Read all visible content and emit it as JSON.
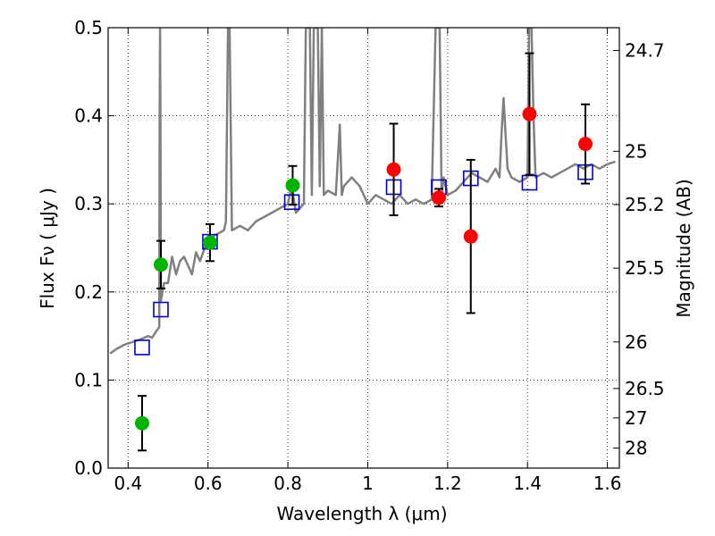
{
  "chart_data": {
    "type": "scatter",
    "title": "",
    "xlabel": "Wavelength  λ (μm)",
    "ylabel": "Flux  Fν  ( μJy )",
    "y2label": "Magnitude (AB)",
    "xlim": [
      0.35,
      1.63
    ],
    "ylim": [
      0.0,
      0.5
    ],
    "grid": true,
    "x_ticks": [
      0.4,
      0.6,
      0.8,
      1.0,
      1.2,
      1.4,
      1.6
    ],
    "x_tick_labels": [
      "0.4",
      "0.6",
      "0.8",
      "1",
      "1.2",
      "1.4",
      "1.6"
    ],
    "y_ticks": [
      0.0,
      0.1,
      0.2,
      0.3,
      0.4,
      0.5
    ],
    "y_tick_labels": [
      "0.0",
      "0.1",
      "0.2",
      "0.3",
      "0.4",
      "0.5"
    ],
    "y2_ticks": [
      {
        "label": "24.7",
        "flux": 0.4742
      },
      {
        "label": "25",
        "flux": 0.3597
      },
      {
        "label": "25.2",
        "flux": 0.2992
      },
      {
        "label": "25.5",
        "flux": 0.227
      },
      {
        "label": "26",
        "flux": 0.1432
      },
      {
        "label": "26.5",
        "flux": 0.0904
      },
      {
        "label": "27",
        "flux": 0.057
      },
      {
        "label": "28",
        "flux": 0.0227
      }
    ],
    "series": [
      {
        "name": "model_spectrum",
        "kind": "line",
        "color": "#808080",
        "x": [
          0.355,
          0.37,
          0.39,
          0.41,
          0.43,
          0.45,
          0.46,
          0.47,
          0.478,
          0.479,
          0.48,
          0.481,
          0.482,
          0.49,
          0.5,
          0.51,
          0.52,
          0.53,
          0.54,
          0.55,
          0.56,
          0.57,
          0.58,
          0.6,
          0.62,
          0.64,
          0.645,
          0.65,
          0.652,
          0.654,
          0.66,
          0.68,
          0.7,
          0.72,
          0.74,
          0.76,
          0.78,
          0.8,
          0.81,
          0.82,
          0.84,
          0.845,
          0.85,
          0.855,
          0.86,
          0.865,
          0.87,
          0.875,
          0.88,
          0.885,
          0.89,
          0.9,
          0.92,
          0.93,
          0.935,
          0.94,
          0.96,
          0.98,
          1.0,
          1.02,
          1.04,
          1.06,
          1.08,
          1.1,
          1.12,
          1.14,
          1.16,
          1.17,
          1.175,
          1.18,
          1.185,
          1.19,
          1.2,
          1.22,
          1.24,
          1.26,
          1.28,
          1.3,
          1.32,
          1.33,
          1.335,
          1.34,
          1.345,
          1.35,
          1.36,
          1.38,
          1.4,
          1.404,
          1.41,
          1.415,
          1.42,
          1.44,
          1.46,
          1.48,
          1.5,
          1.52,
          1.54,
          1.56,
          1.58,
          1.6,
          1.62
        ],
        "y": [
          0.13,
          0.135,
          0.14,
          0.143,
          0.146,
          0.15,
          0.148,
          0.155,
          0.16,
          0.4,
          0.5,
          0.4,
          0.19,
          0.21,
          0.21,
          0.24,
          0.22,
          0.235,
          0.24,
          0.23,
          0.22,
          0.245,
          0.235,
          0.26,
          0.265,
          0.27,
          0.28,
          0.5,
          0.5,
          0.5,
          0.27,
          0.275,
          0.27,
          0.28,
          0.285,
          0.29,
          0.295,
          0.3,
          0.32,
          0.29,
          0.3,
          0.5,
          0.5,
          0.5,
          0.31,
          0.5,
          0.5,
          0.5,
          0.32,
          0.5,
          0.31,
          0.315,
          0.31,
          0.39,
          0.31,
          0.32,
          0.33,
          0.32,
          0.3,
          0.31,
          0.305,
          0.3,
          0.31,
          0.3,
          0.305,
          0.3,
          0.305,
          0.5,
          0.5,
          0.5,
          0.31,
          0.33,
          0.31,
          0.315,
          0.325,
          0.335,
          0.33,
          0.325,
          0.34,
          0.33,
          0.38,
          0.42,
          0.38,
          0.34,
          0.33,
          0.325,
          0.33,
          0.5,
          0.5,
          0.4,
          0.33,
          0.335,
          0.33,
          0.335,
          0.34,
          0.345,
          0.34,
          0.345,
          0.34,
          0.345,
          0.348
        ]
      },
      {
        "name": "model_bandpass_flux",
        "kind": "markers",
        "marker": "square",
        "color": "#0000cc",
        "x": [
          0.435,
          0.482,
          0.605,
          0.81,
          1.065,
          1.178,
          1.258,
          1.405,
          1.545
        ],
        "y": [
          0.137,
          0.18,
          0.257,
          0.302,
          0.319,
          0.319,
          0.329,
          0.324,
          0.336
        ]
      },
      {
        "name": "observed_optical",
        "kind": "errorbar_markers",
        "marker": "circle",
        "color": "#00b400",
        "x": [
          0.435,
          0.482,
          0.605,
          0.812
        ],
        "y": [
          0.051,
          0.231,
          0.256,
          0.321
        ],
        "yerr": [
          0.031,
          0.027,
          0.021,
          0.022
        ]
      },
      {
        "name": "observed_nir",
        "kind": "errorbar_markers",
        "marker": "circle",
        "color": "#ff0000",
        "x": [
          1.065,
          1.178,
          1.258,
          1.405,
          1.545
        ],
        "y": [
          0.339,
          0.307,
          0.263,
          0.402,
          0.368
        ],
        "yerr": [
          0.052,
          0.01,
          0.087,
          0.069,
          0.045
        ]
      }
    ]
  }
}
